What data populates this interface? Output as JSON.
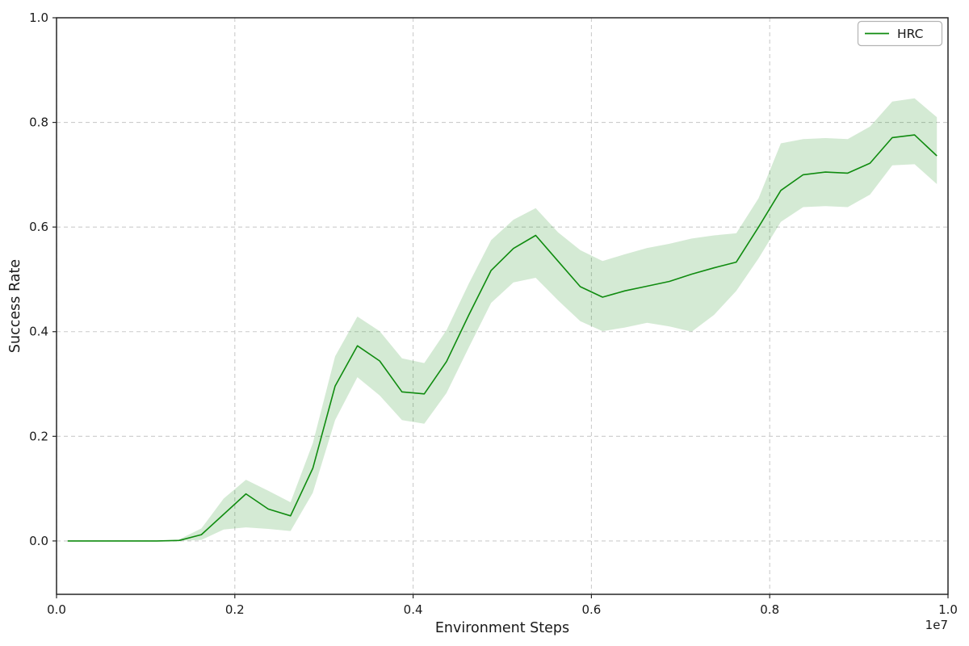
{
  "chart_data": {
    "type": "line",
    "title": "",
    "xlabel": "Environment Steps",
    "ylabel": "Success Rate",
    "x_offset_label": "1e7",
    "x_unit_scale": "1e7",
    "xlim": [
      0.0,
      1.0
    ],
    "ylim": [
      -0.102,
      1.0
    ],
    "x_ticks": [
      0.0,
      0.2,
      0.4,
      0.6,
      0.8,
      1.0
    ],
    "x_tick_labels": [
      "0.0",
      "0.2",
      "0.4",
      "0.6",
      "0.8",
      "1.0"
    ],
    "y_ticks": [
      0.0,
      0.2,
      0.4,
      0.6,
      0.8,
      1.0
    ],
    "y_tick_labels": [
      "0.0",
      "0.2",
      "0.4",
      "0.6",
      "0.8",
      "1.0"
    ],
    "grid": true,
    "grid_style": "dashed",
    "legend": {
      "position": "upper-right",
      "entries": [
        {
          "label": "HRC",
          "color": "#0f8b0f"
        }
      ]
    },
    "series": [
      {
        "name": "HRC",
        "line_color": "#0f8b0f",
        "band_color": "#008000",
        "band_opacity": 0.17,
        "x": [
          0.0125,
          0.0375,
          0.0625,
          0.0875,
          0.1125,
          0.1375,
          0.1625,
          0.1875,
          0.2125,
          0.2375,
          0.2625,
          0.2875,
          0.3125,
          0.3375,
          0.3625,
          0.3875,
          0.4125,
          0.4375,
          0.4625,
          0.4875,
          0.5125,
          0.5375,
          0.5625,
          0.5875,
          0.6125,
          0.6375,
          0.6625,
          0.6875,
          0.7125,
          0.7375,
          0.7625,
          0.7875,
          0.8125,
          0.8375,
          0.8625,
          0.8875,
          0.9125,
          0.9375,
          0.9625,
          0.9875
        ],
        "y": [
          0.0,
          0.0,
          0.0,
          0.0,
          0.0,
          0.001,
          0.012,
          0.051,
          0.09,
          0.061,
          0.048,
          0.139,
          0.296,
          0.373,
          0.344,
          0.285,
          0.281,
          0.343,
          0.432,
          0.517,
          0.559,
          0.584,
          0.535,
          0.486,
          0.466,
          0.478,
          0.487,
          0.496,
          0.51,
          0.522,
          0.533,
          0.6,
          0.67,
          0.7,
          0.705,
          0.703,
          0.722,
          0.771,
          0.776,
          0.736
        ],
        "band_upper": [
          0.0,
          0.0,
          0.0,
          0.0,
          0.0,
          0.003,
          0.024,
          0.081,
          0.117,
          0.096,
          0.074,
          0.187,
          0.353,
          0.429,
          0.401,
          0.349,
          0.34,
          0.403,
          0.492,
          0.575,
          0.614,
          0.636,
          0.59,
          0.556,
          0.535,
          0.548,
          0.56,
          0.568,
          0.578,
          0.584,
          0.588,
          0.655,
          0.76,
          0.768,
          0.77,
          0.768,
          0.792,
          0.84,
          0.846,
          0.81
        ],
        "band_lower": [
          0.0,
          0.0,
          0.0,
          0.0,
          0.0,
          0.0,
          0.002,
          0.022,
          0.026,
          0.023,
          0.019,
          0.092,
          0.231,
          0.313,
          0.278,
          0.231,
          0.224,
          0.283,
          0.37,
          0.455,
          0.494,
          0.503,
          0.46,
          0.42,
          0.401,
          0.408,
          0.417,
          0.41,
          0.4,
          0.432,
          0.478,
          0.54,
          0.61,
          0.638,
          0.64,
          0.638,
          0.662,
          0.718,
          0.72,
          0.682
        ]
      }
    ],
    "style": {
      "background": "#ffffff",
      "spine_color": "#262626",
      "grid_color": "#cccccc",
      "tick_color": "#262626",
      "text_color": "#000000",
      "legend_border": "#b3b3b3",
      "legend_bg": "#ffffff"
    }
  }
}
